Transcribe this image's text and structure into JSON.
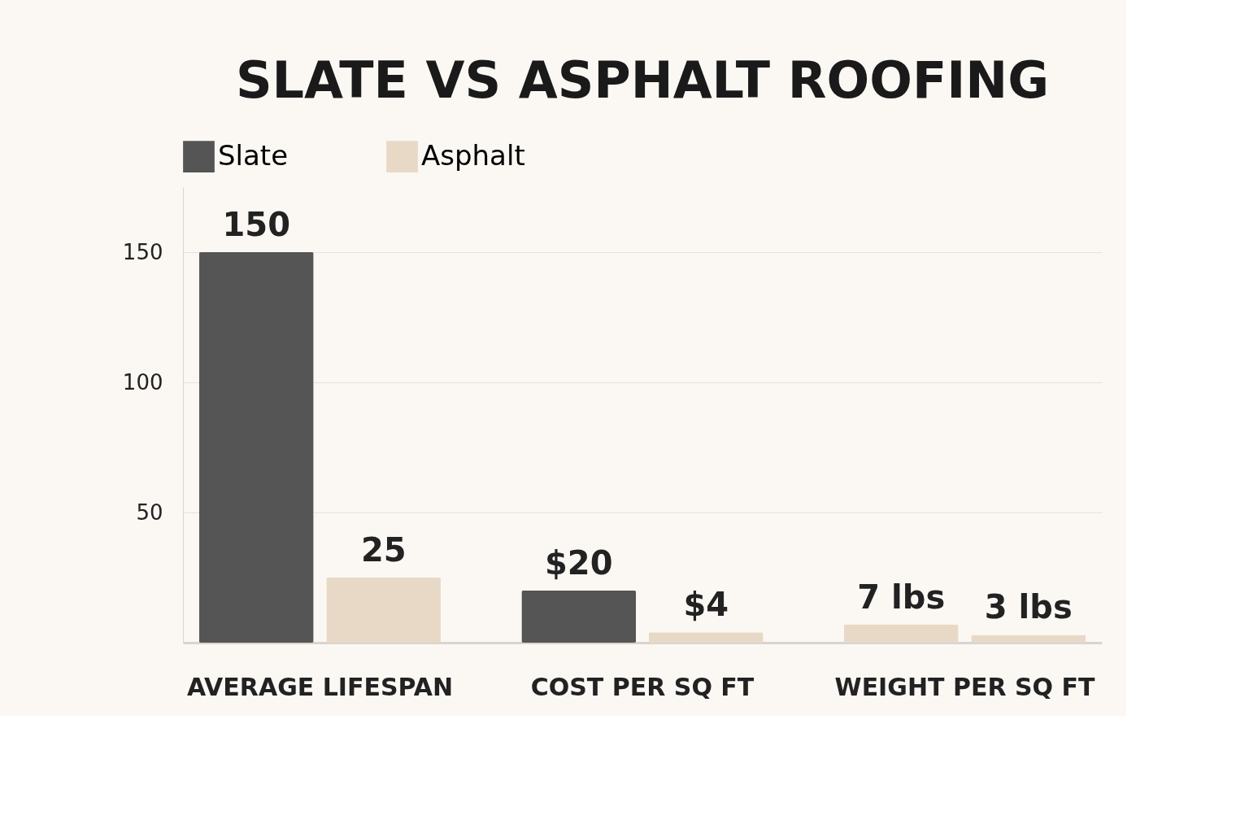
{
  "chart_data": {
    "type": "bar",
    "title": "SLATE VS ASPHALT ROOFING",
    "categories": [
      "AVERAGE LIFESPAN",
      "COST PER SQ FT",
      "WEIGHT PER SQ FT"
    ],
    "series": [
      {
        "name": "Slate",
        "color": "#555555",
        "colors": [
          "#555555",
          "#555555",
          "#e8d9c6"
        ],
        "values": [
          150,
          20,
          7
        ],
        "value_labels": [
          "150",
          "$20",
          "7 lbs"
        ]
      },
      {
        "name": "Asphalt",
        "color": "#e8d9c6",
        "colors": [
          "#e8d9c6",
          "#e8d9c6",
          "#e8d9c6"
        ],
        "values": [
          25,
          4,
          3
        ],
        "value_labels": [
          "25",
          "$4",
          "3 lbs"
        ]
      }
    ],
    "ylim": [
      0,
      175
    ],
    "yticks": [
      50,
      100,
      150
    ],
    "grid": "y",
    "legend": "top"
  }
}
